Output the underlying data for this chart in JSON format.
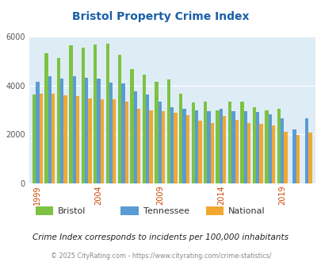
{
  "title": "Bristol Property Crime Index",
  "years": [
    1999,
    2000,
    2001,
    2002,
    2003,
    2004,
    2005,
    2006,
    2007,
    2008,
    2009,
    2010,
    2011,
    2012,
    2013,
    2014,
    2015,
    2016,
    2017,
    2018,
    2019,
    2020,
    2021
  ],
  "bristol": [
    3650,
    5320,
    5130,
    5650,
    5560,
    5680,
    5700,
    5250,
    4680,
    4460,
    4160,
    4250,
    3680,
    3320,
    3350,
    2990,
    3330,
    3330,
    3110,
    2990,
    3060,
    0,
    0
  ],
  "tennessee": [
    4150,
    4370,
    4280,
    4370,
    4310,
    4280,
    4120,
    4100,
    3770,
    3640,
    3330,
    3120,
    3050,
    2990,
    2940,
    3050,
    2940,
    2940,
    2920,
    2830,
    2650,
    2200,
    2650
  ],
  "national": [
    3680,
    3660,
    3620,
    3560,
    3490,
    3450,
    3430,
    3340,
    3060,
    2990,
    2940,
    2890,
    2790,
    2580,
    2460,
    2770,
    2590,
    2470,
    2450,
    2370,
    2110,
    1980,
    2080
  ],
  "colors": {
    "bristol": "#7dc243",
    "tennessee": "#5b9bd5",
    "national": "#f0a830"
  },
  "plot_bg": "#deedf5",
  "ylim": [
    0,
    6000
  ],
  "yticks": [
    0,
    2000,
    4000,
    6000
  ],
  "subtitle": "Crime Index corresponds to incidents per 100,000 inhabitants",
  "footer": "© 2025 CityRating.com - https://www.cityrating.com/crime-statistics/",
  "legend_labels": [
    "Bristol",
    "Tennessee",
    "National"
  ],
  "xlabel_ticks": [
    1999,
    2004,
    2009,
    2014,
    2019
  ]
}
